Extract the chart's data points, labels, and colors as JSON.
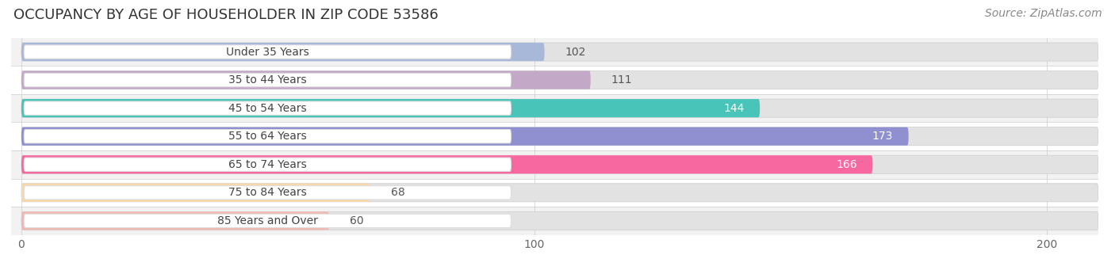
{
  "title": "OCCUPANCY BY AGE OF HOUSEHOLDER IN ZIP CODE 53586",
  "source": "Source: ZipAtlas.com",
  "categories": [
    "Under 35 Years",
    "35 to 44 Years",
    "45 to 54 Years",
    "55 to 64 Years",
    "65 to 74 Years",
    "75 to 84 Years",
    "85 Years and Over"
  ],
  "values": [
    102,
    111,
    144,
    173,
    166,
    68,
    60
  ],
  "bar_colors": [
    "#a8b8d8",
    "#c4a8c8",
    "#48c4b8",
    "#9090d0",
    "#f868a0",
    "#f8d8a8",
    "#f0b8b0"
  ],
  "xlim": [
    -2,
    210
  ],
  "xticks": [
    0,
    100,
    200
  ],
  "title_fontsize": 13,
  "source_fontsize": 10,
  "label_fontsize": 10,
  "value_fontsize": 10,
  "bar_height": 0.65,
  "fig_bg_color": "#ffffff",
  "axes_bg_color": "#ffffff",
  "row_bg_colors": [
    "#f2f2f2",
    "#ffffff"
  ],
  "bg_bar_color": "#e2e2e2",
  "pill_bg_color": "#ffffff",
  "pill_border_color": "#dddddd",
  "value_threshold": 130,
  "inside_value_color": "#ffffff",
  "outside_value_color": "#555555"
}
